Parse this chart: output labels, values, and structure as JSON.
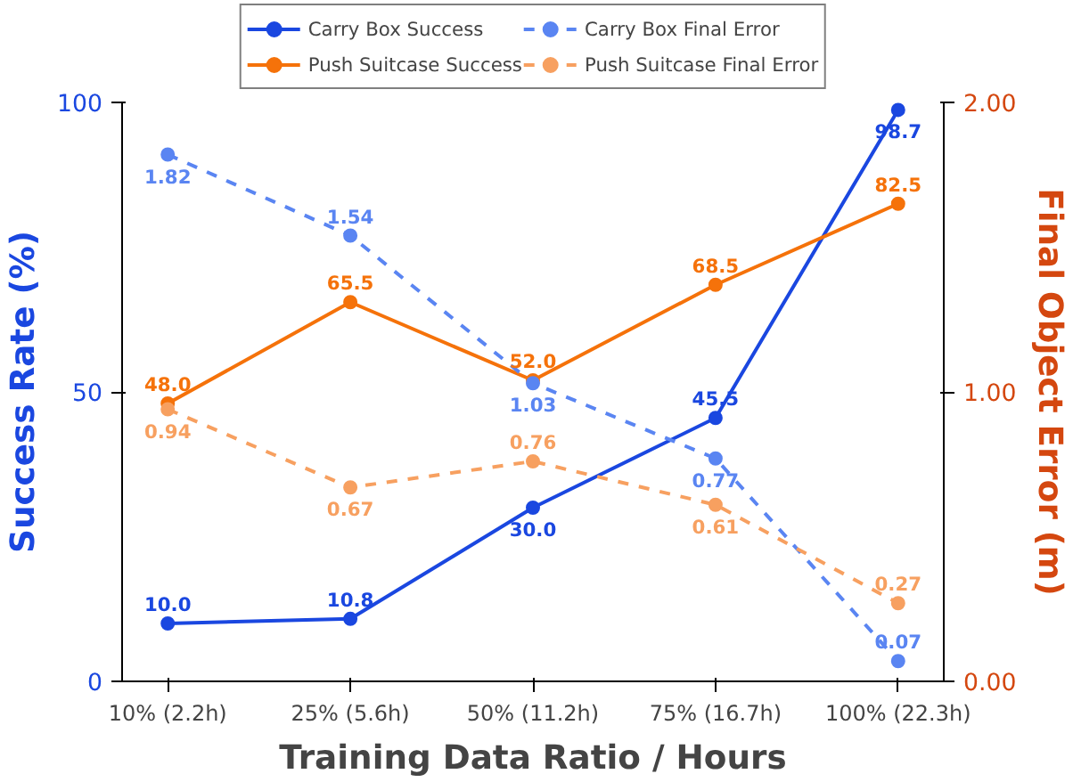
{
  "chart_data": {
    "type": "line",
    "xlabel": "Training Data Ratio / Hours",
    "ylabel": "Success Rate (%)",
    "y2label": "Final Object Error (m)",
    "categories": [
      "10% (2.2h)",
      "25% (5.6h)",
      "50% (11.2h)",
      "75% (16.7h)",
      "100% (22.3h)"
    ],
    "series": [
      {
        "name": "Carry Box Success",
        "color": "#1a47e0",
        "values": [
          10.0,
          10.8,
          30.0,
          45.5,
          98.7
        ],
        "value_labels": [
          "10.0",
          "10.8",
          "30.0",
          "45.5",
          "98.7"
        ],
        "line_style": "solid"
      },
      {
        "name": "Push Suitcase Success",
        "color": "#f5720a",
        "values": [
          48.0,
          65.5,
          52.0,
          68.5,
          82.5
        ],
        "value_labels": [
          "48.0",
          "65.5",
          "52.0",
          "68.5",
          "82.5"
        ],
        "line_style": "solid"
      },
      {
        "name": "Carry Box Final Error",
        "color": "#5a85f2",
        "values": [
          1.82,
          1.54,
          1.03,
          0.77,
          0.07
        ],
        "value_labels": [
          "1.82",
          "1.54",
          "1.03",
          "0.77",
          "0.07"
        ],
        "axis": "y2",
        "line_style": "dashed"
      },
      {
        "name": "Push Suitcase Final Error",
        "color": "#f7a060",
        "values": [
          0.94,
          0.67,
          0.76,
          0.61,
          0.27
        ],
        "value_labels": [
          "0.94",
          "0.67",
          "0.76",
          "0.61",
          "0.27"
        ],
        "axis": "y2",
        "line_style": "dashed"
      }
    ],
    "ylim": [
      0,
      100
    ],
    "yticks": [
      0,
      50,
      100
    ],
    "y2lim": [
      0,
      2
    ],
    "y2ticks": [
      {
        "value": 0,
        "label": "0.00"
      },
      {
        "value": 1,
        "label": "1.00"
      },
      {
        "value": 2,
        "label": "2.00"
      }
    ],
    "marker": "circle",
    "grid": false,
    "legend": "top"
  }
}
